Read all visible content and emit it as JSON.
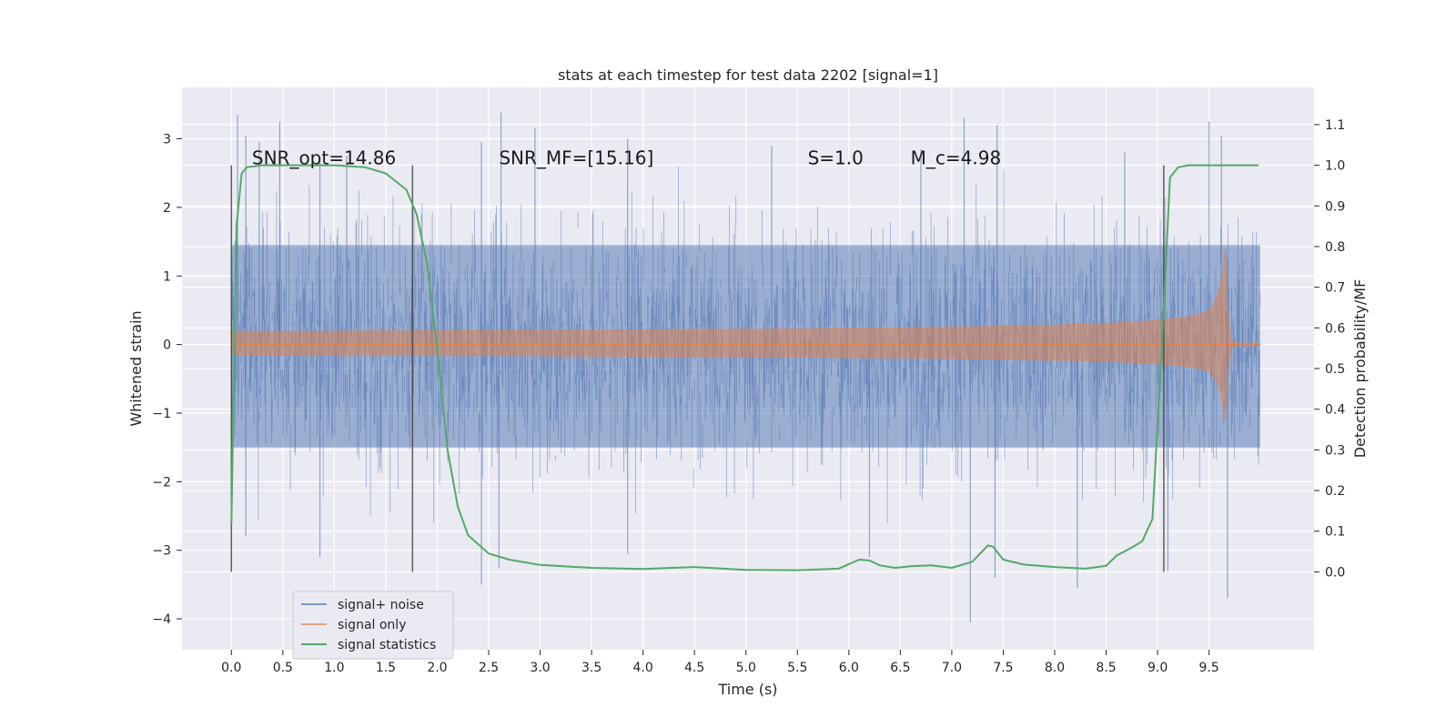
{
  "chart_data": {
    "type": "line",
    "title": "stats at each timestep for test data 2202 [signal=1]",
    "xlabel": "Time (s)",
    "ylabel": "Whitened strain",
    "y2label": "Detection probability/MF",
    "xlim": [
      -0.48,
      10.52
    ],
    "ylim": [
      -4.45,
      3.75
    ],
    "y2lim": [
      -0.1915,
      1.1915
    ],
    "x_ticks": [
      0.0,
      0.5,
      1.0,
      1.5,
      2.0,
      2.5,
      3.0,
      3.5,
      4.0,
      4.5,
      5.0,
      5.5,
      6.0,
      6.5,
      7.0,
      7.5,
      8.0,
      8.5,
      9.0,
      9.5
    ],
    "x_tick_labels": [
      "0.0",
      "0.5",
      "1.0",
      "1.5",
      "2.0",
      "2.5",
      "3.0",
      "3.5",
      "4.0",
      "4.5",
      "5.0",
      "5.5",
      "6.0",
      "6.5",
      "7.0",
      "7.5",
      "8.0",
      "8.5",
      "9.0",
      "9.5"
    ],
    "y_ticks": [
      3,
      2,
      1,
      0,
      -1,
      -2,
      -3,
      -4
    ],
    "y_tick_labels": [
      "3",
      "2",
      "1",
      "0",
      "−1",
      "−2",
      "−3",
      "−4"
    ],
    "y2_ticks": [
      1.1,
      1.0,
      0.9,
      0.8,
      0.7,
      0.6,
      0.5,
      0.4,
      0.3,
      0.2,
      0.1,
      0.0
    ],
    "y2_tick_labels": [
      "1.1",
      "1.0",
      "0.9",
      "0.8",
      "0.7",
      "0.6",
      "0.5",
      "0.4",
      "0.3",
      "0.2",
      "0.1",
      "0.0"
    ],
    "grid": true,
    "legend_position": "lower-left",
    "annotations": [
      {
        "id": "snr-opt",
        "text": "SNR_opt=14.86",
        "x": 0.2,
        "y2": 1.0
      },
      {
        "id": "snr-mf",
        "text": "SNR_MF=[15.16]",
        "x": 2.6,
        "y2": 1.0
      },
      {
        "id": "s",
        "text": "S=1.0",
        "x": 5.6,
        "y2": 1.0
      },
      {
        "id": "mc",
        "text": "M_c=4.98",
        "x": 6.6,
        "y2": 1.0
      }
    ],
    "vlines": [
      {
        "x": 0.0,
        "y2_range": [
          0.0,
          1.0
        ]
      },
      {
        "x": 1.76,
        "y2_range": [
          0.0,
          1.0
        ]
      },
      {
        "x": 9.06,
        "y2_range": [
          0.0,
          1.0
        ]
      }
    ],
    "series": [
      {
        "name": "signal+ noise",
        "axis": "left",
        "color": "#4c72b0",
        "kind": "noise",
        "x_range": [
          0.0,
          9.996
        ],
        "typical_range": [
          -1.5,
          1.45
        ],
        "extreme_range": [
          -4.05,
          3.4
        ],
        "spikes": [
          {
            "x": 0.06,
            "y": 3.35
          },
          {
            "x": 0.14,
            "y": 3.05
          },
          {
            "x": 0.27,
            "y": 2.95
          },
          {
            "x": 0.47,
            "y": 3.25
          },
          {
            "x": 0.86,
            "y": 2.7
          },
          {
            "x": 1.12,
            "y": 2.75
          },
          {
            "x": 2.43,
            "y": 2.95
          },
          {
            "x": 2.62,
            "y": 3.38
          },
          {
            "x": 2.95,
            "y": 3.15
          },
          {
            "x": 3.85,
            "y": 3.0
          },
          {
            "x": 5.25,
            "y": 2.9
          },
          {
            "x": 6.7,
            "y": 2.85
          },
          {
            "x": 7.12,
            "y": 3.3
          },
          {
            "x": 7.44,
            "y": 3.2
          },
          {
            "x": 8.68,
            "y": 2.8
          },
          {
            "x": 9.5,
            "y": 3.25
          },
          {
            "x": 9.62,
            "y": 3.05
          },
          {
            "x": 0.14,
            "y": -2.8
          },
          {
            "x": 0.86,
            "y": -3.1
          },
          {
            "x": 2.43,
            "y": -3.5
          },
          {
            "x": 2.6,
            "y": -3.25
          },
          {
            "x": 3.85,
            "y": -3.05
          },
          {
            "x": 6.2,
            "y": -3.1
          },
          {
            "x": 7.18,
            "y": -4.05
          },
          {
            "x": 7.42,
            "y": -3.4
          },
          {
            "x": 8.22,
            "y": -3.55
          },
          {
            "x": 9.1,
            "y": -3.3
          },
          {
            "x": 9.68,
            "y": -3.7
          }
        ]
      },
      {
        "name": "signal only",
        "axis": "left",
        "color": "#dd8452",
        "kind": "chirp",
        "x_range": [
          0.0,
          9.996
        ],
        "merger_time": 9.66,
        "peak_amplitude": 1.4,
        "start_amplitude": 0.02
      },
      {
        "name": "signal statistics",
        "axis": "right",
        "color": "#55a868",
        "kind": "curve",
        "x": [
          0.0,
          0.05,
          0.1,
          0.15,
          0.3,
          0.5,
          1.0,
          1.3,
          1.5,
          1.7,
          1.8,
          1.9,
          2.0,
          2.1,
          2.2,
          2.3,
          2.5,
          2.7,
          3.0,
          3.5,
          4.0,
          4.5,
          5.0,
          5.5,
          5.9,
          6.1,
          6.2,
          6.3,
          6.45,
          6.6,
          6.8,
          7.0,
          7.2,
          7.35,
          7.4,
          7.5,
          7.7,
          8.0,
          8.3,
          8.5,
          8.6,
          8.75,
          8.85,
          8.95,
          9.05,
          9.12,
          9.2,
          9.3,
          9.5,
          9.98
        ],
        "y": [
          0.12,
          0.85,
          0.98,
          0.995,
          1.0,
          1.0,
          1.0,
          0.995,
          0.98,
          0.94,
          0.88,
          0.76,
          0.55,
          0.3,
          0.16,
          0.09,
          0.045,
          0.03,
          0.017,
          0.01,
          0.007,
          0.012,
          0.005,
          0.004,
          0.008,
          0.03,
          0.028,
          0.016,
          0.01,
          0.014,
          0.016,
          0.01,
          0.025,
          0.065,
          0.062,
          0.03,
          0.018,
          0.012,
          0.008,
          0.015,
          0.04,
          0.06,
          0.075,
          0.13,
          0.6,
          0.97,
          0.995,
          1.0,
          1.0,
          1.0
        ]
      }
    ]
  }
}
